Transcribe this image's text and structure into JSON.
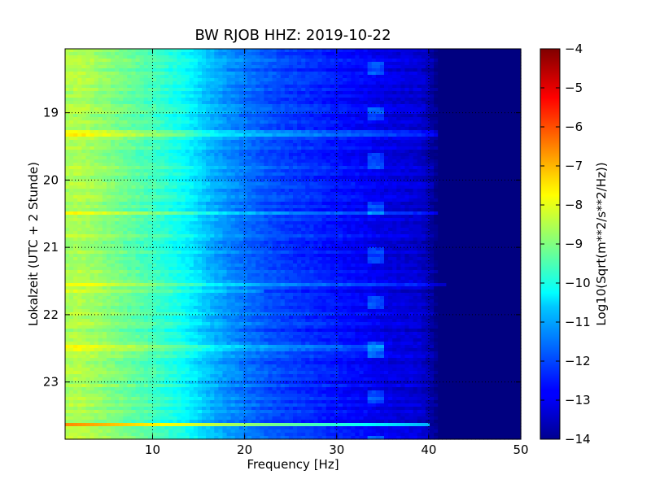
{
  "chart_data": {
    "type": "heatmap",
    "title": "BW RJOB HHZ: 2019-10-22",
    "xlabel": "Frequency [Hz]",
    "ylabel": "Lokalzeit (UTC + 2 Stunde)",
    "xlim": [
      0.5,
      50
    ],
    "ylim": [
      18.05,
      23.85
    ],
    "y_inverted": true,
    "x_ticks": [
      10,
      20,
      30,
      40,
      50
    ],
    "y_ticks": [
      19,
      20,
      21,
      22,
      23
    ],
    "grid": true,
    "colormap": "jet",
    "colorbar": {
      "label": "Log10(Sqrt(m**2/s**2/Hz))",
      "range": [
        -14,
        -4
      ],
      "ticks": [
        -4,
        -5,
        -6,
        -7,
        -8,
        -9,
        -10,
        -11,
        -12,
        -13,
        -14
      ]
    },
    "spectrum_profile": {
      "frequency_hz": [
        0.5,
        2,
        5,
        10,
        13,
        15,
        16.5,
        18,
        20,
        22,
        25,
        28,
        30,
        33,
        35,
        37,
        39,
        40,
        41,
        42,
        50
      ],
      "log10_amplitude": [
        -8.6,
        -8.5,
        -8.9,
        -9.6,
        -10.1,
        -10.6,
        -11.0,
        -11.3,
        -11.6,
        -11.9,
        -12.2,
        -12.4,
        -12.6,
        -12.8,
        -13.0,
        -13.1,
        -13.2,
        -13.5,
        -14.0,
        -14.0,
        -14.0
      ]
    },
    "strong_event": {
      "time": 23.62,
      "frequency_range_hz": [
        0.5,
        40
      ],
      "peak_log10_amplitude": -6.5
    },
    "bright_lines": [
      {
        "time": 19.3,
        "max_frequency_hz": 41
      },
      {
        "time": 20.5,
        "max_frequency_hz": 41
      },
      {
        "time": 21.55,
        "max_frequency_hz": 42
      },
      {
        "time": 21.65,
        "max_frequency_hz": 22
      },
      {
        "time": 22.5,
        "max_frequency_hz": 35
      }
    ]
  },
  "colors": {
    "frame": "#000000",
    "background": "#ffffff"
  }
}
